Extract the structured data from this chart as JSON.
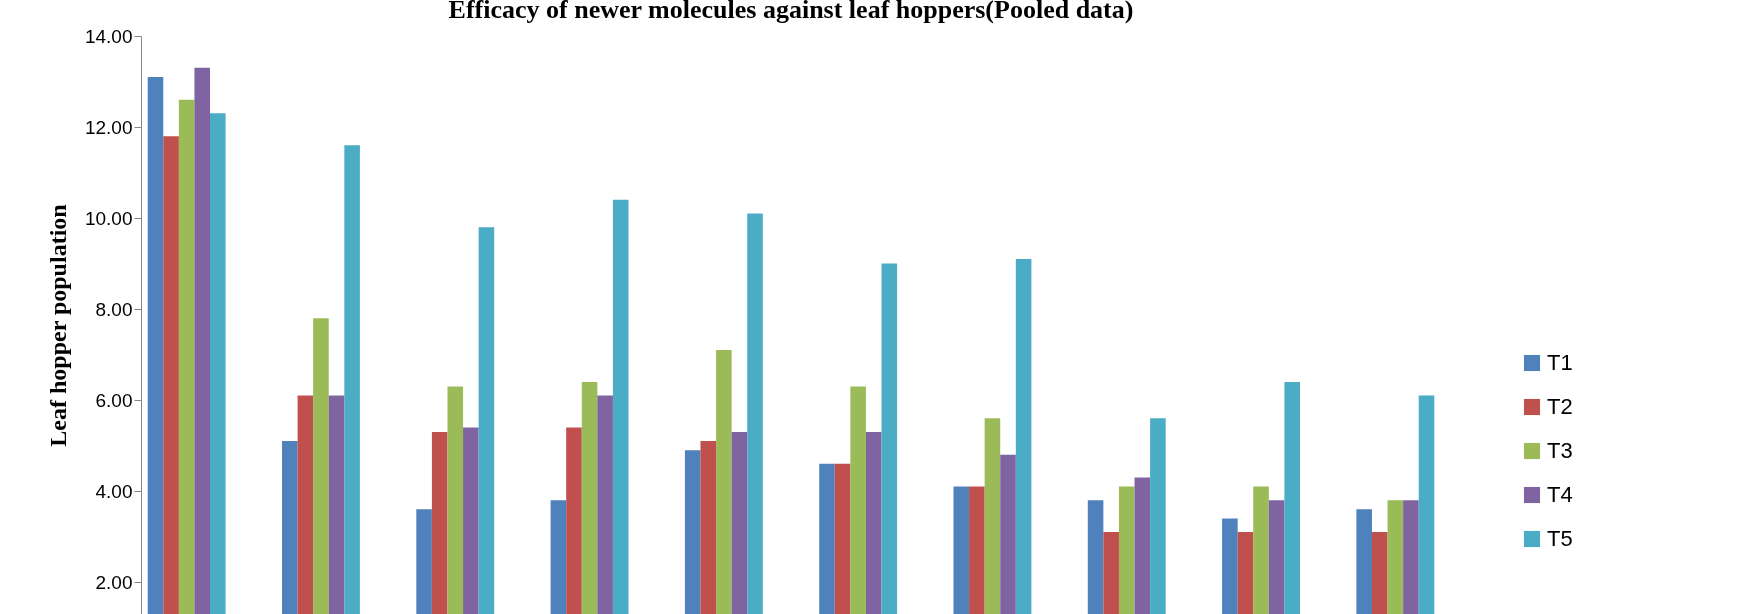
{
  "chart_data": {
    "type": "bar",
    "title": "Efficacy of newer molecules against leaf hoppers(Pooled data)",
    "ylabel": "Leaf hopper population",
    "categories": [
      null,
      null,
      null,
      null,
      null,
      null,
      null,
      null,
      null,
      null
    ],
    "series": [
      {
        "name": "T1",
        "color": "#4f81bd",
        "values": [
          13.1,
          5.1,
          3.6,
          3.8,
          4.9,
          4.6,
          4.1,
          3.8,
          3.4,
          3.6
        ]
      },
      {
        "name": "T2",
        "color": "#c0504d",
        "values": [
          11.8,
          6.1,
          5.3,
          5.4,
          5.1,
          4.6,
          4.1,
          3.1,
          3.1,
          3.1
        ]
      },
      {
        "name": "T3",
        "color": "#9bbb59",
        "values": [
          12.6,
          7.8,
          6.3,
          6.4,
          7.1,
          6.3,
          5.6,
          4.1,
          4.1,
          3.8
        ]
      },
      {
        "name": "T4",
        "color": "#8064a2",
        "values": [
          13.3,
          6.1,
          5.4,
          6.1,
          5.3,
          5.3,
          4.8,
          4.3,
          3.8,
          3.8
        ]
      },
      {
        "name": "T5",
        "color": "#4bacc6",
        "values": [
          12.3,
          11.6,
          9.8,
          10.4,
          10.1,
          9.0,
          9.1,
          5.6,
          6.4,
          6.1
        ]
      }
    ],
    "ylim": [
      1.3,
      14
    ],
    "yticks": [
      {
        "value": 2,
        "label": "2.00"
      },
      {
        "value": 4,
        "label": "4.00"
      },
      {
        "value": 6,
        "label": "6.00"
      },
      {
        "value": 8,
        "label": "8.00"
      },
      {
        "value": 10,
        "label": "10.00"
      },
      {
        "value": 12,
        "label": "12.00"
      },
      {
        "value": 14,
        "label": "14.00"
      }
    ],
    "grid": false,
    "legend": "right",
    "tick_labels": "y"
  }
}
